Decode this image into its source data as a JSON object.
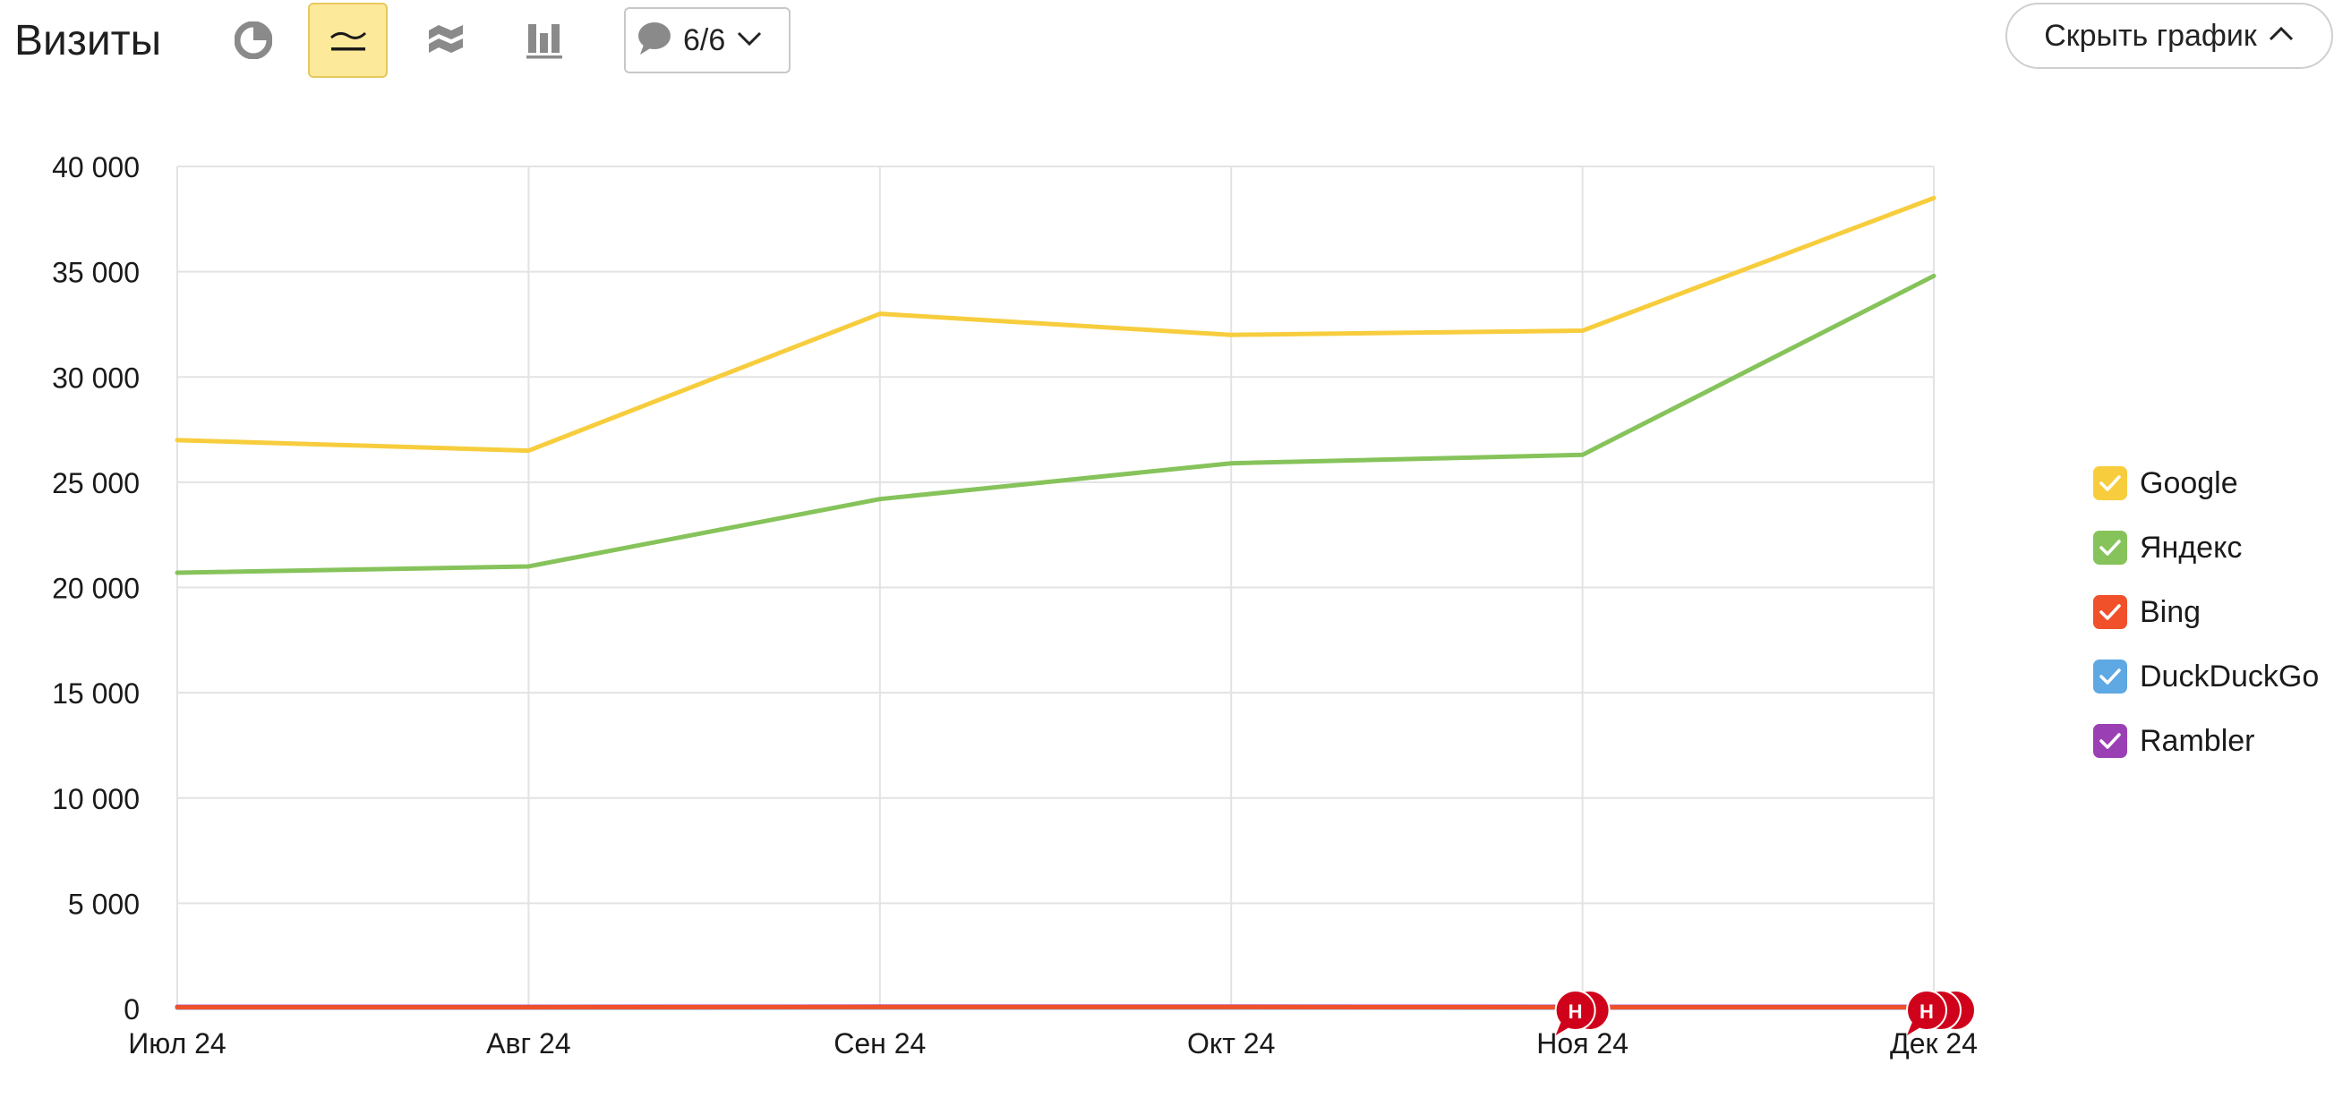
{
  "header": {
    "title": "Визиты",
    "notes_count": "6/6",
    "hide_chart_label": "Скрыть график"
  },
  "view_buttons": [
    {
      "name": "pie-chart-icon",
      "active": false
    },
    {
      "name": "line-chart-icon",
      "active": true
    },
    {
      "name": "area-chart-icon",
      "active": false
    },
    {
      "name": "bar-chart-icon",
      "active": false
    }
  ],
  "colors": {
    "accent_active": "#fde99a",
    "grid": "#e3e3e3",
    "note_marker": "#d0021b"
  },
  "chart_data": {
    "type": "line",
    "x": [
      "Июл 24",
      "Авг 24",
      "Сен 24",
      "Окт 24",
      "Ноя 24",
      "Дек 24"
    ],
    "y_ticks": [
      "0",
      "5 000",
      "10 000",
      "15 000",
      "20 000",
      "25 000",
      "30 000",
      "35 000",
      "40 000"
    ],
    "ylim": [
      0,
      40000
    ],
    "grid": true,
    "legend_position": "right",
    "series": [
      {
        "name": "Google",
        "color": "#f7cd3d",
        "values": [
          27000,
          26500,
          33000,
          32000,
          32200,
          38500
        ]
      },
      {
        "name": "Яндекс",
        "color": "#86c35b",
        "values": [
          20700,
          21000,
          24200,
          25900,
          26300,
          34800
        ]
      },
      {
        "name": "Bing",
        "color": "#f0512a",
        "values": [
          60,
          60,
          70,
          70,
          60,
          60
        ]
      },
      {
        "name": "DuckDuckGo",
        "color": "#5ea8e4",
        "values": [
          40,
          40,
          50,
          50,
          40,
          40
        ]
      },
      {
        "name": "Rambler",
        "color": "#9b3fb5",
        "values": [
          80,
          80,
          90,
          90,
          80,
          80
        ]
      }
    ],
    "annotations": [
      {
        "x": "Ноя 24",
        "label": "Н",
        "count": 2
      },
      {
        "x": "Дек 24",
        "label": "Н",
        "count": 3
      }
    ]
  }
}
